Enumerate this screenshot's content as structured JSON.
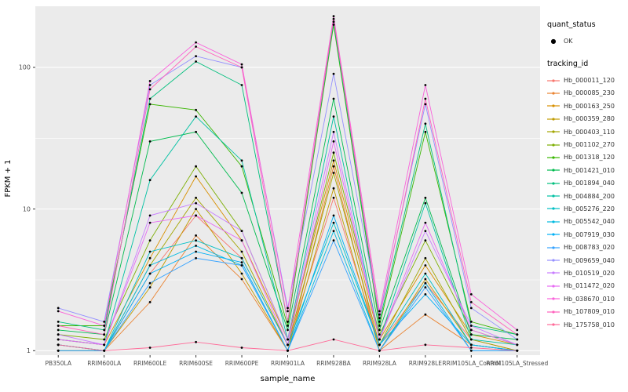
{
  "chart_data": {
    "type": "line",
    "title": "",
    "xlabel": "sample_name",
    "ylabel": "FPKM + 1",
    "yscale": "log",
    "ylim": [
      0.93,
      270
    ],
    "yticks": [
      1,
      10,
      100
    ],
    "yminor": [
      3.162,
      31.62
    ],
    "grid": true,
    "panel_bg": "#EBEBEB",
    "grid_color": "#FFFFFF",
    "point_color": "#000000",
    "categories": [
      "PB350LA",
      "RRIM600LA",
      "RRIM600LE",
      "RRIM600SE",
      "RRIM600PE",
      "RRIM901LA",
      "RRIM928BA",
      "RRIM928LA",
      "RRIM928LE",
      "RRIM105LA_Control",
      "RRIM105LA_Stressed"
    ],
    "legend": {
      "position": "right",
      "quant_status_title": "quant_status",
      "quant_status_items": [
        {
          "label": "OK",
          "marker": "point"
        }
      ],
      "tracking_title": "tracking_id"
    },
    "series": [
      {
        "name": "Hb_000011_120",
        "color": "#F8766D",
        "values": [
          1.1,
          1.0,
          3.5,
          9.0,
          4.5,
          1.1,
          12,
          1.1,
          3.0,
          1.2,
          1.0
        ]
      },
      {
        "name": "Hb_000085_230",
        "color": "#EA8331",
        "values": [
          1.0,
          1.0,
          2.2,
          6.5,
          3.2,
          1.0,
          20,
          1.0,
          1.8,
          1.1,
          1.0
        ]
      },
      {
        "name": "Hb_000163_250",
        "color": "#D89000",
        "values": [
          1.2,
          1.1,
          4.5,
          17,
          6.0,
          1.2,
          22,
          1.2,
          4.0,
          1.3,
          1.1
        ]
      },
      {
        "name": "Hb_000359_280",
        "color": "#C09B00",
        "values": [
          1.0,
          1.0,
          2.8,
          10,
          3.5,
          1.0,
          14,
          1.0,
          3.2,
          1.1,
          1.0
        ]
      },
      {
        "name": "Hb_000403_110",
        "color": "#A3A500",
        "values": [
          1.1,
          1.0,
          4.0,
          12,
          5.0,
          1.1,
          18,
          1.1,
          4.5,
          1.2,
          1.0
        ]
      },
      {
        "name": "Hb_001102_270",
        "color": "#7CAE00",
        "values": [
          1.3,
          1.2,
          6.0,
          20,
          7.0,
          1.2,
          25,
          1.3,
          6.0,
          1.4,
          1.1
        ]
      },
      {
        "name": "Hb_001318_120",
        "color": "#39B600",
        "values": [
          1.5,
          1.5,
          55,
          50,
          20,
          1.5,
          200,
          1.5,
          35,
          1.6,
          1.3
        ]
      },
      {
        "name": "Hb_001421_010",
        "color": "#00BB4E",
        "values": [
          1.4,
          1.3,
          30,
          35,
          13,
          1.4,
          60,
          1.4,
          12,
          1.3,
          1.2
        ]
      },
      {
        "name": "Hb_001894_040",
        "color": "#00BF7D",
        "values": [
          1.6,
          1.4,
          60,
          110,
          75,
          1.6,
          210,
          1.6,
          40,
          1.5,
          1.3
        ]
      },
      {
        "name": "Hb_004884_200",
        "color": "#00C1A3",
        "values": [
          1.2,
          1.1,
          16,
          45,
          22,
          1.2,
          45,
          1.2,
          11,
          1.2,
          1.1
        ]
      },
      {
        "name": "Hb_005276_220",
        "color": "#00BFC4",
        "values": [
          1.1,
          1.0,
          5.0,
          6.0,
          4.5,
          1.1,
          8.0,
          1.1,
          3.5,
          1.1,
          1.0
        ]
      },
      {
        "name": "Hb_005542_040",
        "color": "#00BAE0",
        "values": [
          1.0,
          1.0,
          4.0,
          5.5,
          4.0,
          1.0,
          7.0,
          1.0,
          3.0,
          1.0,
          1.0
        ]
      },
      {
        "name": "Hb_007919_030",
        "color": "#00B0F6",
        "values": [
          1.1,
          1.0,
          3.5,
          5.0,
          4.2,
          1.0,
          9.0,
          1.1,
          2.5,
          1.1,
          1.0
        ]
      },
      {
        "name": "Hb_008783_020",
        "color": "#35A2FF",
        "values": [
          1.0,
          1.0,
          3.0,
          4.5,
          4.0,
          1.0,
          6.0,
          1.0,
          2.8,
          1.0,
          1.0
        ]
      },
      {
        "name": "Hb_009659_040",
        "color": "#9590FF",
        "values": [
          2.0,
          1.6,
          75,
          120,
          100,
          2.0,
          90,
          1.8,
          55,
          2.0,
          1.2
        ]
      },
      {
        "name": "Hb_010519_020",
        "color": "#C77CFF",
        "values": [
          1.3,
          1.1,
          9.0,
          11,
          7.0,
          1.2,
          35,
          1.2,
          7.0,
          1.5,
          1.1
        ]
      },
      {
        "name": "Hb_011472_020",
        "color": "#E76BF3",
        "values": [
          1.2,
          1.1,
          8.0,
          9.0,
          6.0,
          1.1,
          30,
          1.2,
          8.0,
          1.4,
          1.1
        ]
      },
      {
        "name": "Hb_038670_010",
        "color": "#FA62DB",
        "values": [
          1.9,
          1.5,
          80,
          150,
          105,
          1.9,
          230,
          1.9,
          75,
          2.5,
          1.4
        ]
      },
      {
        "name": "Hb_107809_010",
        "color": "#FF62BC",
        "values": [
          1.5,
          1.3,
          70,
          140,
          100,
          1.6,
          220,
          1.7,
          60,
          2.2,
          1.3
        ]
      },
      {
        "name": "Hb_175758_010",
        "color": "#FF6A98",
        "values": [
          1.1,
          1.0,
          1.05,
          1.15,
          1.05,
          1.0,
          1.2,
          1.0,
          1.1,
          1.05,
          1.0
        ]
      }
    ]
  }
}
